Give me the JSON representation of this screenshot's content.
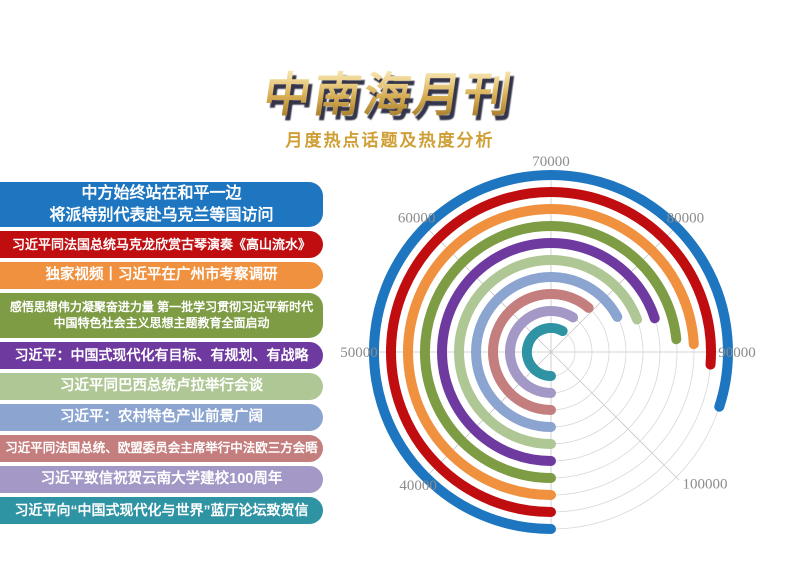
{
  "header": {
    "title": "中南海月刊",
    "subtitle": "月度热点话题及热度分析",
    "subtitle_color": "#cf9f35",
    "title_gold_light": "#fdf6d8",
    "title_gold_dark": "#8a6a2a"
  },
  "headlines": {
    "items": [
      {
        "lines": [
          "中方始终站在和平一边",
          "将派特别代表赴乌克兰等国访问"
        ],
        "color": "#1e76c0"
      },
      {
        "lines": [
          "习近平同法国总统马克龙欣赏古琴演奏《高山流水》"
        ],
        "color": "#c00d10"
      },
      {
        "lines": [
          "独家视频丨习近平在广州市考察调研"
        ],
        "color": "#f0913f"
      },
      {
        "lines": [
          "感悟思想伟力凝聚奋进力量 第一批学习贯彻习近平新时代",
          "中国特色社会主义思想主题教育全面启动"
        ],
        "color": "#7d9c44"
      },
      {
        "lines": [
          "习近平：中国式现代化有目标、有规划、有战略"
        ],
        "color": "#6f3aa0"
      },
      {
        "lines": [
          "习近平同巴西总统卢拉举行会谈"
        ],
        "color": "#afc795"
      },
      {
        "lines": [
          "习近平：农村特色产业前景广阔"
        ],
        "color": "#8ba4d0"
      },
      {
        "lines": [
          "习近平同法国总统、欧盟委员会主席举行中法欧三方会晤"
        ],
        "color": "#c57e7e"
      },
      {
        "lines": [
          "习近平致信祝贺云南大学建校100周年"
        ],
        "color": "#a398c6"
      },
      {
        "lines": [
          "习近平向“中国式现代化与世界”蓝厅论坛致贺信"
        ],
        "color": "#2e93a3"
      }
    ]
  },
  "chart_data": {
    "type": "radial_bar",
    "title": "月度热点话题及热度分析",
    "angle_axis": {
      "min": 30000,
      "max": 110000,
      "tick_step": 10000,
      "degrees_per_tick": 45,
      "start_position": "bottom",
      "direction": "clockwise"
    },
    "ticks": [
      {
        "label": "40000",
        "value": 40000,
        "angle_deg": 225
      },
      {
        "label": "50000",
        "value": 50000,
        "angle_deg": 270
      },
      {
        "label": "60000",
        "value": 60000,
        "angle_deg": 315
      },
      {
        "label": "70000",
        "value": 70000,
        "angle_deg": 0
      },
      {
        "label": "80000",
        "value": 80000,
        "angle_deg": 45
      },
      {
        "label": "90000",
        "value": 90000,
        "angle_deg": 90
      },
      {
        "label": "100000",
        "value": 100000,
        "angle_deg": 135
      }
    ],
    "series": [
      {
        "name": "中方始终站在和平一边 将派特别代表赴乌克兰等国访问",
        "value": 94000,
        "color": "#1e76c0"
      },
      {
        "name": "习近平同法国总统马克龙欣赏古琴演奏《高山流水》",
        "value": 91000,
        "color": "#c00d10"
      },
      {
        "name": "独家视频丨习近平在广州市考察调研",
        "value": 89300,
        "color": "#f0913f"
      },
      {
        "name": "感悟思想伟力凝聚奋进力量 第一批学习贯彻习近平新时代中国特色社会主义思想主题教育全面启动",
        "value": 88700,
        "color": "#7d9c44"
      },
      {
        "name": "习近平：中国式现代化有目标、有规划、有战略",
        "value": 86000,
        "color": "#6f3aa0"
      },
      {
        "name": "习近平同巴西总统卢拉举行会谈",
        "value": 85400,
        "color": "#afc795"
      },
      {
        "name": "习近平：农村特色产业前景广阔",
        "value": 83800,
        "color": "#8ba4d0"
      },
      {
        "name": "习近平同法国总统、欧盟委员会主席举行中法欧三方会晤",
        "value": 79000,
        "color": "#c57e7e"
      },
      {
        "name": "习近平致信祝贺云南大学建校100周年",
        "value": 77200,
        "color": "#a398c6"
      },
      {
        "name": "习近平向“中国式现代化与世界”蓝厅论坛致贺信",
        "value": 76500,
        "color": "#2e93a3"
      }
    ],
    "grid": {
      "spoke_color": "#c6c6c6",
      "ring_color": "#d7d7d7",
      "tick_label_color": "#8c8c8c"
    }
  }
}
